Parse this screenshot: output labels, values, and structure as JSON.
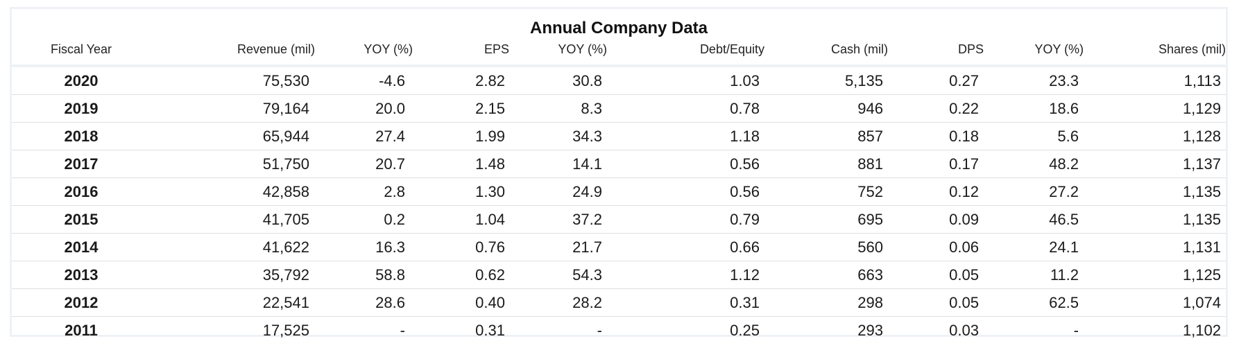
{
  "chart_data": {
    "type": "table",
    "title": "Annual Company Data",
    "columns": [
      "Fiscal Year",
      "Revenue (mil)",
      "YOY (%)",
      "EPS",
      "YOY (%)",
      "Debt/Equity",
      "Cash (mil)",
      "DPS",
      "YOY (%)",
      "Shares (mil)"
    ],
    "rows": [
      [
        "2020",
        "75,530",
        "-4.6",
        "2.82",
        "30.8",
        "1.03",
        "5,135",
        "0.27",
        "23.3",
        "1,113"
      ],
      [
        "2019",
        "79,164",
        "20.0",
        "2.15",
        "8.3",
        "0.78",
        "946",
        "0.22",
        "18.6",
        "1,129"
      ],
      [
        "2018",
        "65,944",
        "27.4",
        "1.99",
        "34.3",
        "1.18",
        "857",
        "0.18",
        "5.6",
        "1,128"
      ],
      [
        "2017",
        "51,750",
        "20.7",
        "1.48",
        "14.1",
        "0.56",
        "881",
        "0.17",
        "48.2",
        "1,137"
      ],
      [
        "2016",
        "42,858",
        "2.8",
        "1.30",
        "24.9",
        "0.56",
        "752",
        "0.12",
        "27.2",
        "1,135"
      ],
      [
        "2015",
        "41,705",
        "0.2",
        "1.04",
        "37.2",
        "0.79",
        "695",
        "0.09",
        "46.5",
        "1,135"
      ],
      [
        "2014",
        "41,622",
        "16.3",
        "0.76",
        "21.7",
        "0.66",
        "560",
        "0.06",
        "24.1",
        "1,131"
      ],
      [
        "2013",
        "35,792",
        "58.8",
        "0.62",
        "54.3",
        "1.12",
        "663",
        "0.05",
        "11.2",
        "1,125"
      ],
      [
        "2012",
        "22,541",
        "28.6",
        "0.40",
        "28.2",
        "0.31",
        "298",
        "0.05",
        "62.5",
        "1,074"
      ],
      [
        "2011",
        "17,525",
        "-",
        "0.31",
        "-",
        "0.25",
        "293",
        "0.03",
        "-",
        "1,102"
      ]
    ]
  }
}
